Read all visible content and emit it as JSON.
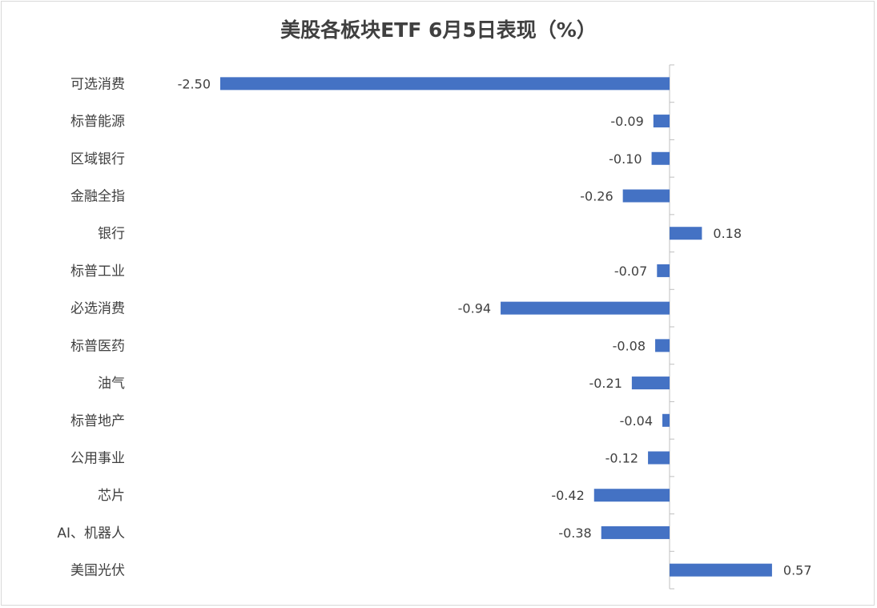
{
  "chart_data": {
    "type": "bar",
    "orientation": "horizontal",
    "title": "美股各板块ETF  6月5日表现（%）",
    "categories": [
      "可选消费",
      "标普能源",
      "区域银行",
      "金融全指",
      "银行",
      "标普工业",
      "必选消费",
      "标普医药",
      "油气",
      "标普地产",
      "公用事业",
      "芯片",
      "AI、机器人",
      "美国光伏"
    ],
    "values": [
      -2.5,
      -0.09,
      -0.1,
      -0.26,
      0.18,
      -0.07,
      -0.94,
      -0.08,
      -0.21,
      -0.04,
      -0.12,
      -0.42,
      -0.38,
      0.57
    ],
    "value_labels": [
      "-2.50",
      "-0.09",
      "-0.10",
      "-0.26",
      "0.18",
      "-0.07",
      "-0.94",
      "-0.08",
      "-0.21",
      "-0.04",
      "-0.12",
      "-0.42",
      "-0.38",
      "0.57"
    ],
    "xlim": [
      -2.5,
      0.6
    ],
    "grid": false,
    "legend": "none",
    "bar_color": "#4472c4"
  }
}
